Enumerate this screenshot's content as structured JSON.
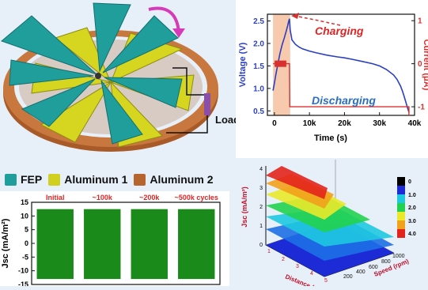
{
  "diagram": {
    "load_label": "Load"
  },
  "legend": [
    {
      "label": "FEP",
      "color": "#1f9e9c"
    },
    {
      "label": "Aluminum 1",
      "color": "#d1cf20"
    },
    {
      "label": "Aluminum 2",
      "color": "#b7652f"
    }
  ],
  "chart_data": [
    {
      "type": "line",
      "xlabel": "Time (s)",
      "ylabel": "Voltage (V)",
      "y2label": "Current (μA)",
      "xlim": [
        -2000,
        40000
      ],
      "ylim": [
        0.4,
        2.65
      ],
      "y2lim": [
        -1.2,
        1.15
      ],
      "x_ticks": [
        0,
        10000,
        20000,
        30000,
        40000
      ],
      "x_tick_labels": [
        "0",
        "10k",
        "20k",
        "30k",
        "40k"
      ],
      "y_ticks": [
        0.5,
        1.0,
        1.5,
        2.0,
        2.5
      ],
      "y_tick_labels": [
        "0.5",
        "1.0",
        "1.5",
        "2.0",
        "2.5"
      ],
      "y2_ticks": [
        -1,
        0,
        1
      ],
      "y2_tick_labels": [
        "-1",
        "0",
        "1"
      ],
      "annotations": [
        "Charging",
        "Discharging"
      ],
      "charging_region": [
        -400,
        4500
      ],
      "series": [
        {
          "color": "#2b3fc2",
          "x": [
            -400,
            0,
            400,
            1000,
            1600,
            2200,
            2800,
            3400,
            3800,
            4100,
            4300,
            4500,
            5000,
            6000,
            7000,
            8000,
            10000,
            12000,
            15000,
            18000,
            20000,
            22000,
            25000,
            28000,
            30000,
            32000,
            34000,
            35000,
            36000,
            36500,
            37000,
            37500,
            38000,
            38400
          ],
          "y": [
            0.95,
            1.12,
            1.3,
            1.55,
            1.78,
            1.97,
            2.12,
            2.28,
            2.4,
            2.5,
            2.55,
            2.3,
            2.08,
            1.98,
            1.92,
            1.88,
            1.83,
            1.79,
            1.74,
            1.7,
            1.68,
            1.65,
            1.6,
            1.55,
            1.5,
            1.42,
            1.3,
            1.2,
            1.05,
            0.95,
            0.83,
            0.7,
            0.57,
            0.47
          ]
        },
        {
          "color": "#d93030",
          "axis": "y2",
          "x": [
            -400,
            4300,
            4400,
            38400,
            38400
          ],
          "y": [
            0,
            0,
            -1,
            -1,
            -1.2
          ]
        }
      ]
    },
    {
      "type": "bar",
      "ylabel": "Jsc (mA/m²)",
      "ylim": [
        -15,
        15
      ],
      "y_ticks": [
        -15,
        -10,
        -5,
        0,
        5,
        10,
        15
      ],
      "y_tick_labels": [
        "-15",
        "-10",
        "-5",
        "0",
        "5",
        "10",
        "15"
      ],
      "categories": [
        "Initial",
        "~100k",
        "~200k",
        "~500k cycles"
      ],
      "series": [
        {
          "values_high": [
            12.5,
            12.5,
            12.5,
            12.5
          ],
          "values_low": [
            -13.0,
            -13.0,
            -13.0,
            -13.0
          ],
          "color": "#1a8a1a"
        }
      ]
    },
    {
      "type": "surface",
      "zlabel": "Jsc (mA/m²)",
      "xlabel": "Distance (mm)",
      "ylabel": "Speed (rpm)",
      "z_ticks": [
        0,
        1,
        2,
        3,
        4
      ],
      "x_ticks": [
        1,
        2,
        3,
        4,
        5
      ],
      "y_ticks": [
        200,
        400,
        600,
        800,
        1000
      ],
      "colorbar_labels": [
        "0",
        "1.0",
        "2.0",
        "3.0",
        "4.0"
      ],
      "colorbar_colors": [
        "#000000",
        "#1d2bd6",
        "#1ec8e0",
        "#22d24e",
        "#e9e92a",
        "#f2a11c",
        "#e3231c"
      ]
    }
  ]
}
